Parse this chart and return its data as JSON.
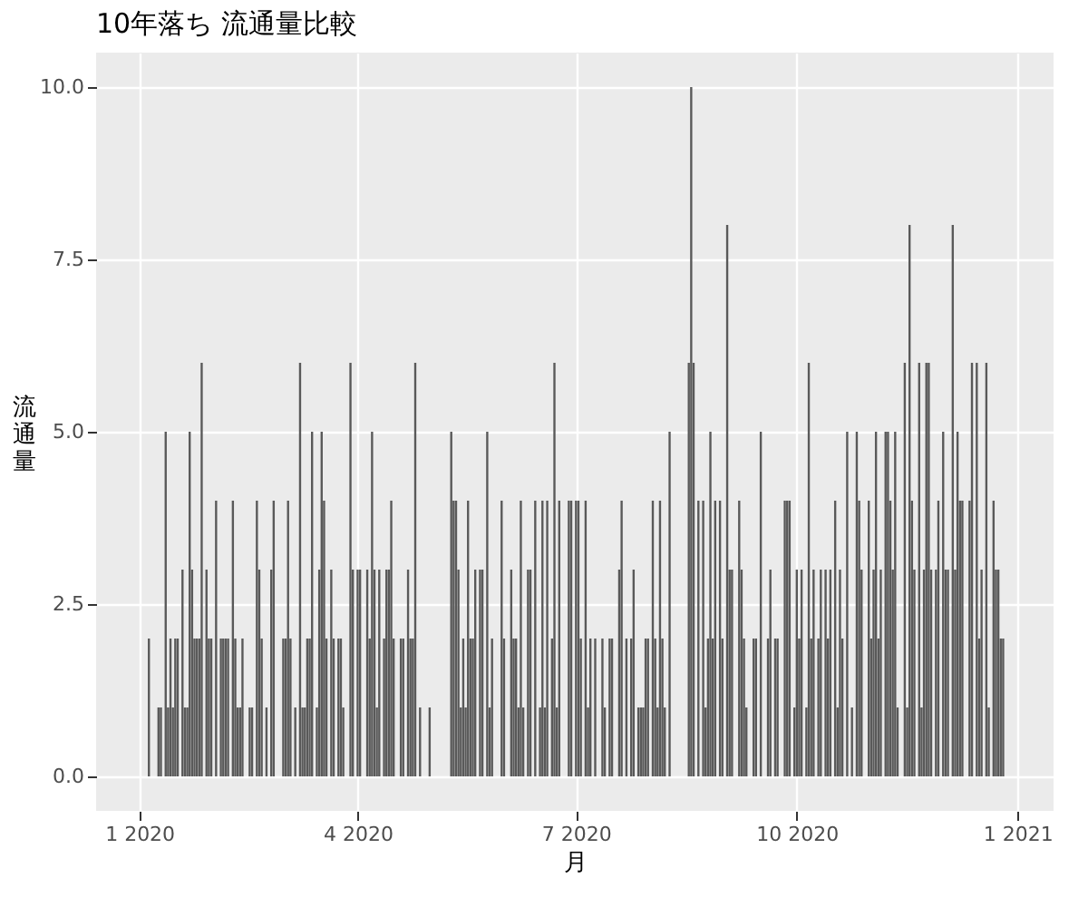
{
  "chart_data": {
    "type": "bar",
    "title": "10年落ち 流通量比較",
    "xlabel": "月",
    "ylabel": "流通量",
    "color": "#595959",
    "grid": true,
    "xlim": [
      "2019-12-14",
      "2021-01-16"
    ],
    "xticks": [
      {
        "value": "2020-01-01",
        "label": "1 2020"
      },
      {
        "value": "2020-04-01",
        "label": "4 2020"
      },
      {
        "value": "2020-07-01",
        "label": "7 2020"
      },
      {
        "value": "2020-10-01",
        "label": "10 2020"
      },
      {
        "value": "2021-01-01",
        "label": "1 2021"
      }
    ],
    "ylim": [
      -0.5,
      10.5
    ],
    "yticks": [
      {
        "value": 0,
        "label": "0.0"
      },
      {
        "value": 2.5,
        "label": "2.5"
      },
      {
        "value": 5,
        "label": "5.0"
      },
      {
        "value": 7.5,
        "label": "7.5"
      },
      {
        "value": 10,
        "label": "10.0"
      }
    ],
    "x": [
      "2020-01-05",
      "2020-01-09",
      "2020-01-10",
      "2020-01-12",
      "2020-01-13",
      "2020-01-14",
      "2020-01-15",
      "2020-01-16",
      "2020-01-17",
      "2020-01-19",
      "2020-01-20",
      "2020-01-21",
      "2020-01-22",
      "2020-01-23",
      "2020-01-24",
      "2020-01-25",
      "2020-01-26",
      "2020-01-27",
      "2020-01-29",
      "2020-01-30",
      "2020-01-31",
      "2020-02-02",
      "2020-02-04",
      "2020-02-05",
      "2020-02-06",
      "2020-02-07",
      "2020-02-09",
      "2020-02-10",
      "2020-02-11",
      "2020-02-12",
      "2020-02-13",
      "2020-02-16",
      "2020-02-17",
      "2020-02-19",
      "2020-02-20",
      "2020-02-21",
      "2020-02-23",
      "2020-02-25",
      "2020-02-26",
      "2020-03-01",
      "2020-03-02",
      "2020-03-03",
      "2020-03-04",
      "2020-03-06",
      "2020-03-08",
      "2020-03-09",
      "2020-03-10",
      "2020-03-11",
      "2020-03-12",
      "2020-03-13",
      "2020-03-15",
      "2020-03-16",
      "2020-03-17",
      "2020-03-18",
      "2020-03-19",
      "2020-03-21",
      "2020-03-22",
      "2020-03-24",
      "2020-03-25",
      "2020-03-26",
      "2020-03-29",
      "2020-03-30",
      "2020-04-01",
      "2020-04-02",
      "2020-04-05",
      "2020-04-06",
      "2020-04-07",
      "2020-04-08",
      "2020-04-09",
      "2020-04-10",
      "2020-04-12",
      "2020-04-13",
      "2020-04-14",
      "2020-04-15",
      "2020-04-16",
      "2020-04-19",
      "2020-04-20",
      "2020-04-22",
      "2020-04-23",
      "2020-04-24",
      "2020-04-25",
      "2020-04-27",
      "2020-05-01",
      "2020-05-10",
      "2020-05-11",
      "2020-05-12",
      "2020-05-13",
      "2020-05-14",
      "2020-05-15",
      "2020-05-16",
      "2020-05-17",
      "2020-05-18",
      "2020-05-19",
      "2020-05-20",
      "2020-05-22",
      "2020-05-23",
      "2020-05-25",
      "2020-05-26",
      "2020-05-27",
      "2020-05-31",
      "2020-06-01",
      "2020-06-04",
      "2020-06-05",
      "2020-06-06",
      "2020-06-07",
      "2020-06-08",
      "2020-06-09",
      "2020-06-11",
      "2020-06-12",
      "2020-06-14",
      "2020-06-16",
      "2020-06-17",
      "2020-06-18",
      "2020-06-19",
      "2020-06-21",
      "2020-06-22",
      "2020-06-23",
      "2020-06-24",
      "2020-06-28",
      "2020-06-29",
      "2020-07-01",
      "2020-07-02",
      "2020-07-03",
      "2020-07-05",
      "2020-07-06",
      "2020-07-07",
      "2020-07-09",
      "2020-07-12",
      "2020-07-13",
      "2020-07-15",
      "2020-07-16",
      "2020-07-19",
      "2020-07-20",
      "2020-07-22",
      "2020-07-24",
      "2020-07-25",
      "2020-07-27",
      "2020-07-28",
      "2020-07-29",
      "2020-07-30",
      "2020-07-31",
      "2020-08-02",
      "2020-08-03",
      "2020-08-04",
      "2020-08-05",
      "2020-08-06",
      "2020-08-07",
      "2020-08-09",
      "2020-08-17",
      "2020-08-18",
      "2020-08-19",
      "2020-08-21",
      "2020-08-23",
      "2020-08-24",
      "2020-08-25",
      "2020-08-26",
      "2020-08-27",
      "2020-08-28",
      "2020-08-30",
      "2020-08-31",
      "2020-09-02",
      "2020-09-03",
      "2020-09-04",
      "2020-09-07",
      "2020-09-08",
      "2020-09-09",
      "2020-09-10",
      "2020-09-13",
      "2020-09-14",
      "2020-09-16",
      "2020-09-19",
      "2020-09-20",
      "2020-09-22",
      "2020-09-23",
      "2020-09-26",
      "2020-09-27",
      "2020-09-28",
      "2020-09-30",
      "2020-10-01",
      "2020-10-02",
      "2020-10-03",
      "2020-10-05",
      "2020-10-06",
      "2020-10-07",
      "2020-10-08",
      "2020-10-10",
      "2020-10-11",
      "2020-10-13",
      "2020-10-14",
      "2020-10-15",
      "2020-10-17",
      "2020-10-18",
      "2020-10-19",
      "2020-10-20",
      "2020-10-22",
      "2020-10-24",
      "2020-10-26",
      "2020-10-27",
      "2020-10-28",
      "2020-10-31",
      "2020-11-01",
      "2020-11-02",
      "2020-11-03",
      "2020-11-04",
      "2020-11-05",
      "2020-11-07",
      "2020-11-08",
      "2020-11-09",
      "2020-11-10",
      "2020-11-11",
      "2020-11-12",
      "2020-11-15",
      "2020-11-16",
      "2020-11-17",
      "2020-11-18",
      "2020-11-19",
      "2020-11-21",
      "2020-11-22",
      "2020-11-23",
      "2020-11-24",
      "2020-11-25",
      "2020-11-26",
      "2020-11-28",
      "2020-11-29",
      "2020-12-01",
      "2020-12-02",
      "2020-12-03",
      "2020-12-05",
      "2020-12-06",
      "2020-12-07",
      "2020-12-08",
      "2020-12-09",
      "2020-12-12",
      "2020-12-13",
      "2020-12-15",
      "2020-12-16",
      "2020-12-17",
      "2020-12-19",
      "2020-12-20",
      "2020-12-22",
      "2020-12-23",
      "2020-12-24",
      "2020-12-25",
      "2020-12-26"
    ],
    "values": [
      2,
      1,
      1,
      5,
      1,
      2,
      1,
      2,
      2,
      3,
      1,
      1,
      5,
      3,
      2,
      2,
      2,
      6,
      3,
      2,
      2,
      4,
      2,
      2,
      2,
      2,
      4,
      2,
      1,
      1,
      2,
      1,
      1,
      4,
      3,
      2,
      1,
      3,
      4,
      2,
      2,
      4,
      2,
      1,
      6,
      1,
      1,
      2,
      2,
      5,
      1,
      3,
      5,
      4,
      2,
      3,
      2,
      2,
      2,
      1,
      6,
      3,
      3,
      3,
      3,
      2,
      5,
      3,
      1,
      3,
      2,
      3,
      3,
      4,
      2,
      2,
      2,
      3,
      2,
      2,
      6,
      1,
      1,
      5,
      4,
      4,
      3,
      1,
      2,
      1,
      4,
      2,
      2,
      3,
      3,
      3,
      5,
      1,
      2,
      4,
      2,
      3,
      2,
      2,
      1,
      4,
      1,
      3,
      3,
      4,
      1,
      4,
      1,
      4,
      2,
      6,
      1,
      4,
      4,
      4,
      4,
      4,
      2,
      4,
      1,
      2,
      2,
      2,
      1,
      2,
      2,
      3,
      4,
      2,
      2,
      3,
      1,
      1,
      1,
      2,
      2,
      4,
      2,
      1,
      4,
      2,
      1,
      5,
      6,
      10,
      6,
      4,
      4,
      1,
      2,
      5,
      2,
      4,
      4,
      2,
      8,
      3,
      3,
      4,
      3,
      2,
      1,
      2,
      2,
      5,
      2,
      3,
      2,
      2,
      4,
      4,
      4,
      1,
      3,
      2,
      3,
      1,
      6,
      2,
      3,
      2,
      3,
      3,
      2,
      3,
      4,
      1,
      3,
      2,
      5,
      1,
      5,
      4,
      3,
      4,
      2,
      3,
      5,
      2,
      3,
      5,
      5,
      4,
      3,
      5,
      1,
      6,
      1,
      8,
      4,
      3,
      6,
      1,
      3,
      6,
      6,
      3,
      3,
      4,
      5,
      3,
      3,
      8,
      3,
      5,
      4,
      4,
      4,
      6,
      6,
      2,
      3,
      6,
      1,
      4,
      3,
      3,
      2,
      2
    ]
  }
}
